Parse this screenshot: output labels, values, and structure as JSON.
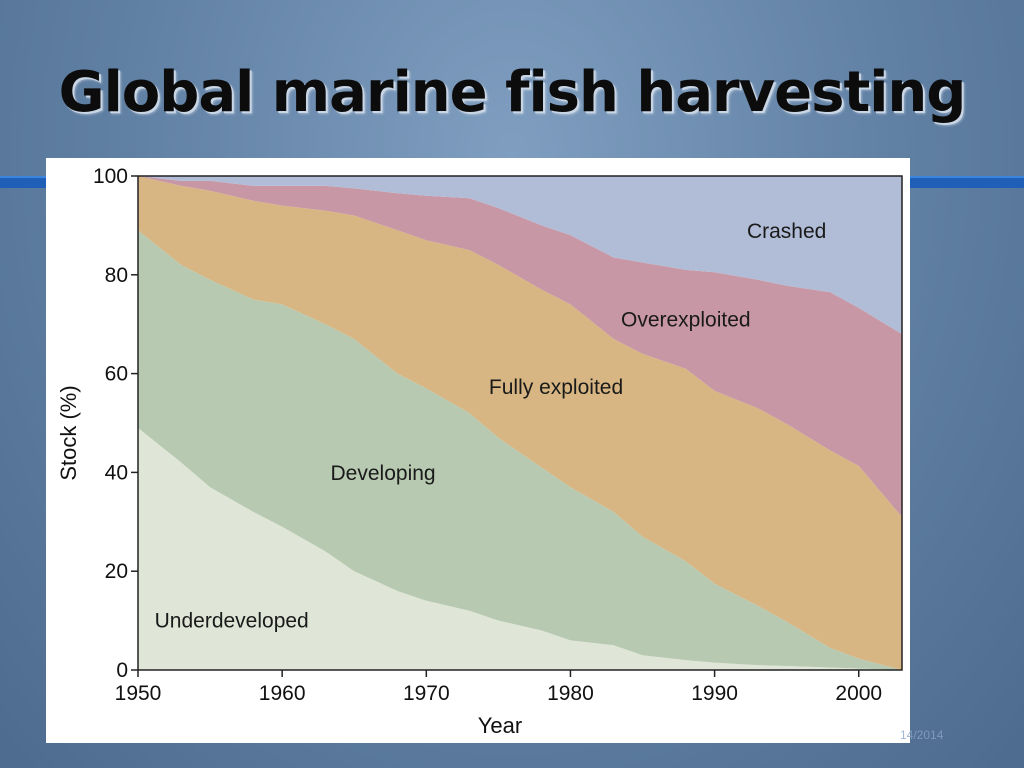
{
  "slide": {
    "title": "Global marine fish harvesting",
    "date_text": "14/2014"
  },
  "chart_data": {
    "type": "area",
    "stacked": true,
    "xlabel": "Year",
    "ylabel": "Stock (%)",
    "xlim": [
      1950,
      2003
    ],
    "ylim": [
      0,
      100
    ],
    "xticks": [
      1950,
      1960,
      1970,
      1980,
      1990,
      2000
    ],
    "yticks": [
      0,
      20,
      40,
      60,
      80,
      100
    ],
    "x": [
      1950,
      1953,
      1955,
      1958,
      1960,
      1963,
      1965,
      1968,
      1970,
      1973,
      1975,
      1978,
      1980,
      1983,
      1985,
      1988,
      1990,
      1993,
      1995,
      1998,
      2000,
      2003
    ],
    "series": [
      {
        "name": "Underdeveloped",
        "color": "#dfe6d7",
        "values": [
          49,
          42,
          37,
          32,
          29,
          24,
          20,
          16,
          14,
          12,
          10,
          8,
          6,
          5,
          3,
          2,
          1.5,
          1,
          0.8,
          0.5,
          0.3,
          0
        ]
      },
      {
        "name": "Developing",
        "color": "#b7c9b0",
        "values": [
          40,
          40,
          42,
          43,
          45,
          46,
          47,
          44,
          43,
          40,
          37,
          33,
          31,
          27,
          24,
          20,
          16,
          12,
          9,
          4,
          2,
          0
        ]
      },
      {
        "name": "Fully exploited",
        "color": "#d7b683",
        "values": [
          11,
          16,
          18,
          20,
          20,
          23,
          25,
          29,
          30,
          33,
          35,
          36,
          37,
          35,
          37,
          39,
          39,
          40,
          40,
          40,
          39,
          31
        ]
      },
      {
        "name": "Overexploited",
        "color": "#c797a5",
        "values": [
          0,
          1,
          2,
          3,
          4,
          5,
          5.5,
          7.5,
          9,
          10.5,
          11.5,
          13,
          14,
          16.5,
          18.5,
          20,
          24,
          26,
          28,
          32,
          32,
          37
        ]
      },
      {
        "name": "Crashed",
        "color": "#b1bcd6",
        "values": [
          0,
          1,
          1,
          2,
          2,
          2,
          2.5,
          3.5,
          4,
          4.5,
          6.5,
          10,
          12,
          16.5,
          17.5,
          19,
          19.5,
          21,
          22.2,
          23.5,
          26.7,
          32
        ]
      }
    ],
    "grid": false,
    "legend": "none"
  }
}
